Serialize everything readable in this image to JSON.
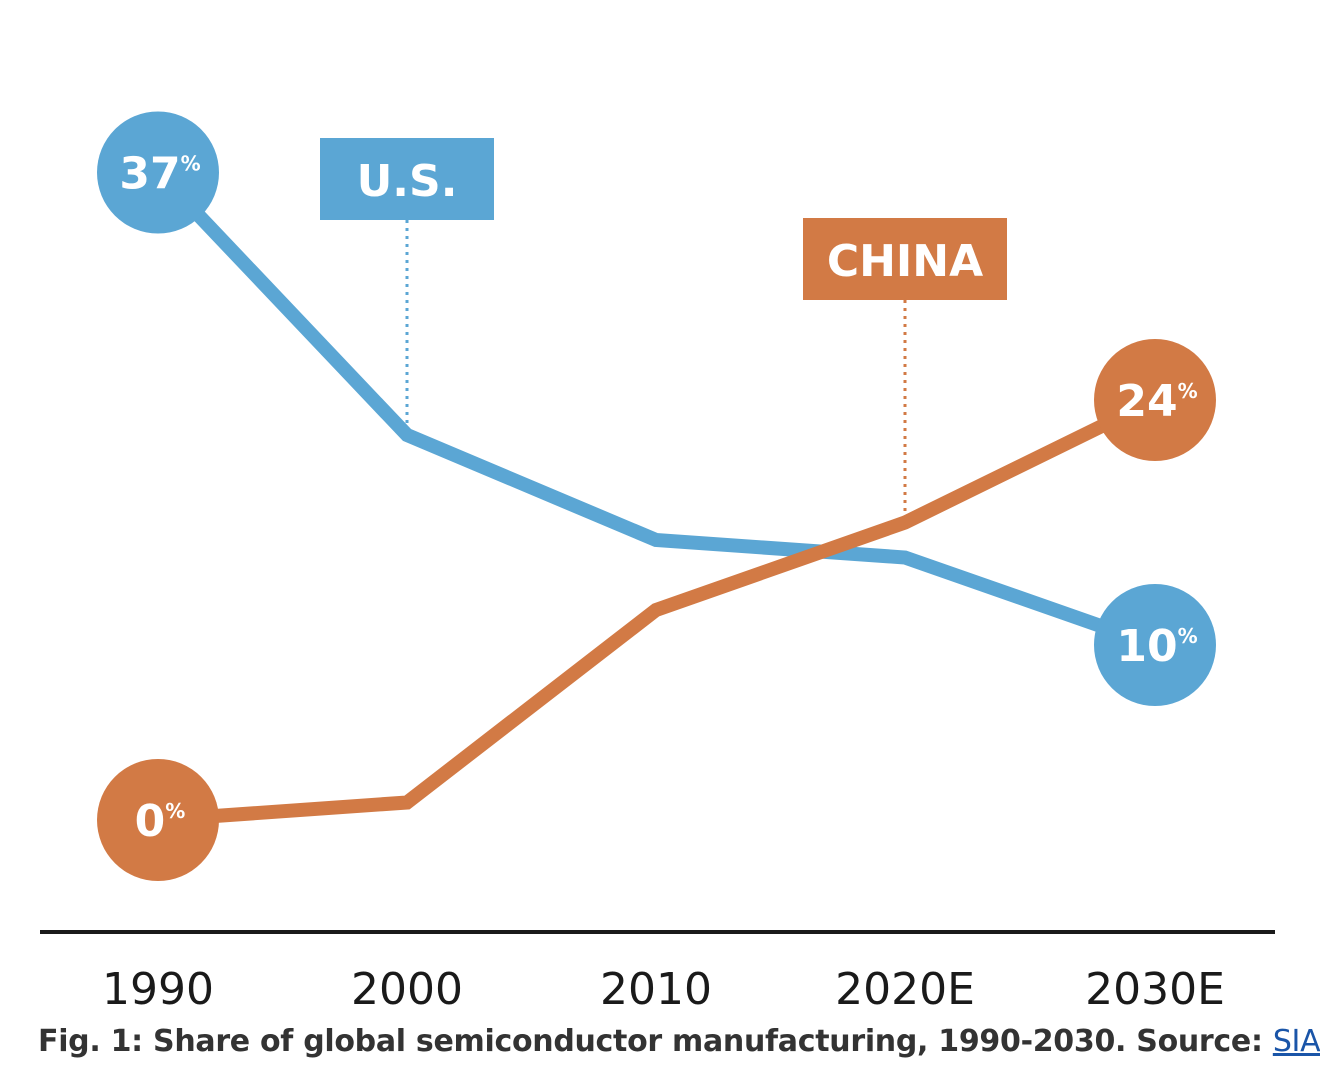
{
  "chart_data": {
    "type": "line",
    "categories": [
      "1990",
      "2000",
      "2010",
      "2020E",
      "2030E"
    ],
    "series": [
      {
        "name": "U.S.",
        "color": "#5ba6d4",
        "values": [
          37,
          22,
          16,
          15,
          10
        ],
        "endpoint_labels": {
          "start": "37",
          "end": "10"
        }
      },
      {
        "name": "CHINA",
        "color": "#d27a45",
        "values": [
          0,
          1,
          12,
          17,
          24
        ],
        "endpoint_labels": {
          "start": "0",
          "end": "24"
        }
      }
    ],
    "percent_symbol": "%",
    "ylim": [
      0,
      40
    ],
    "grid": false,
    "axis_color": "#1a1a1a",
    "label_text_color": "#ffffff"
  },
  "caption": {
    "text": "Fig. 1: Share of global semiconductor manufacturing, 1990-2030. Source: ",
    "link_text": "SIA",
    "link_color": "#1a55a8"
  }
}
